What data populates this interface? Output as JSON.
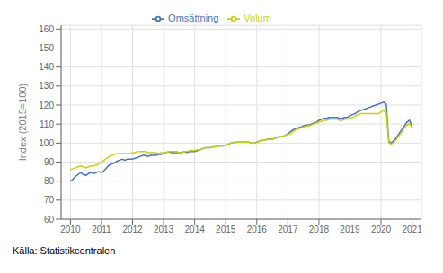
{
  "chart_data": {
    "type": "line",
    "ylabel": "Index (2015=100)",
    "source": "Källa: Statistikcentralen",
    "x": [
      2010.0,
      2010.083,
      2010.167,
      2010.25,
      2010.333,
      2010.417,
      2010.5,
      2010.583,
      2010.667,
      2010.75,
      2010.833,
      2010.917,
      2011.0,
      2011.083,
      2011.167,
      2011.25,
      2011.333,
      2011.417,
      2011.5,
      2011.583,
      2011.667,
      2011.75,
      2011.833,
      2011.917,
      2012.0,
      2012.083,
      2012.167,
      2012.25,
      2012.333,
      2012.417,
      2012.5,
      2012.583,
      2012.667,
      2012.75,
      2012.833,
      2012.917,
      2013.0,
      2013.083,
      2013.167,
      2013.25,
      2013.333,
      2013.417,
      2013.5,
      2013.583,
      2013.667,
      2013.75,
      2013.833,
      2013.917,
      2014.0,
      2014.083,
      2014.167,
      2014.25,
      2014.333,
      2014.417,
      2014.5,
      2014.583,
      2014.667,
      2014.75,
      2014.833,
      2014.917,
      2015.0,
      2015.083,
      2015.167,
      2015.25,
      2015.333,
      2015.417,
      2015.5,
      2015.583,
      2015.667,
      2015.75,
      2015.833,
      2015.917,
      2016.0,
      2016.083,
      2016.167,
      2016.25,
      2016.333,
      2016.417,
      2016.5,
      2016.583,
      2016.667,
      2016.75,
      2016.833,
      2016.917,
      2017.0,
      2017.083,
      2017.167,
      2017.25,
      2017.333,
      2017.417,
      2017.5,
      2017.583,
      2017.667,
      2017.75,
      2017.833,
      2017.917,
      2018.0,
      2018.083,
      2018.167,
      2018.25,
      2018.333,
      2018.417,
      2018.5,
      2018.583,
      2018.667,
      2018.75,
      2018.833,
      2018.917,
      2019.0,
      2019.083,
      2019.167,
      2019.25,
      2019.333,
      2019.417,
      2019.5,
      2019.583,
      2019.667,
      2019.75,
      2019.833,
      2019.917,
      2020.0,
      2020.083,
      2020.167,
      2020.25,
      2020.333,
      2020.417,
      2020.5,
      2020.583,
      2020.667,
      2020.75,
      2020.833,
      2020.917,
      2021.0
    ],
    "series": [
      {
        "name": "Omsättning",
        "color": "#4472C4",
        "values": [
          80.0,
          81.0,
          82.5,
          83.5,
          84.5,
          83.5,
          83.0,
          84.0,
          84.5,
          84.0,
          84.5,
          85.0,
          84.5,
          85.5,
          87.0,
          88.5,
          89.0,
          89.5,
          90.5,
          91.0,
          91.5,
          91.0,
          91.5,
          91.5,
          91.5,
          92.0,
          92.5,
          93.0,
          93.5,
          93.5,
          93.0,
          93.5,
          93.5,
          93.5,
          94.0,
          94.0,
          94.5,
          95.0,
          95.5,
          95.0,
          95.0,
          95.0,
          95.0,
          95.0,
          95.5,
          95.0,
          95.5,
          95.5,
          95.5,
          96.0,
          96.5,
          97.0,
          97.5,
          97.5,
          97.5,
          98.0,
          98.0,
          98.5,
          98.5,
          98.5,
          99.0,
          99.5,
          100.0,
          100.0,
          100.5,
          100.5,
          100.5,
          100.5,
          100.5,
          100.5,
          100.0,
          100.0,
          100.5,
          101.0,
          101.5,
          101.5,
          102.0,
          102.0,
          102.0,
          102.5,
          103.0,
          103.5,
          103.5,
          104.0,
          105.0,
          106.0,
          107.0,
          107.5,
          108.0,
          108.5,
          109.0,
          109.5,
          109.5,
          110.0,
          110.5,
          111.0,
          112.0,
          112.5,
          113.0,
          113.0,
          113.5,
          113.5,
          113.5,
          113.5,
          113.0,
          113.0,
          113.5,
          113.5,
          114.5,
          115.0,
          115.5,
          116.5,
          117.0,
          117.5,
          118.0,
          118.5,
          119.0,
          119.5,
          120.0,
          120.5,
          121.0,
          121.5,
          120.5,
          101.0,
          100.0,
          101.5,
          103.0,
          105.0,
          107.0,
          109.0,
          111.0,
          112.0,
          108.5
        ]
      },
      {
        "name": "Volum",
        "color": "#C8D400",
        "values": [
          86.0,
          86.5,
          87.0,
          87.5,
          88.0,
          87.5,
          87.0,
          87.5,
          88.0,
          88.0,
          88.5,
          89.0,
          90.0,
          91.0,
          92.0,
          93.0,
          93.5,
          94.0,
          94.5,
          94.5,
          94.5,
          94.5,
          94.5,
          94.5,
          95.0,
          95.0,
          95.5,
          95.5,
          95.5,
          95.5,
          95.0,
          95.0,
          95.0,
          95.0,
          94.5,
          95.0,
          95.0,
          95.0,
          95.5,
          95.5,
          95.5,
          95.5,
          95.0,
          95.0,
          95.5,
          95.5,
          96.0,
          96.0,
          96.0,
          96.5,
          96.5,
          97.0,
          97.5,
          97.5,
          97.5,
          98.0,
          98.0,
          98.5,
          98.5,
          98.5,
          99.0,
          99.5,
          100.0,
          100.0,
          100.5,
          100.5,
          100.5,
          100.5,
          100.5,
          100.5,
          100.0,
          100.0,
          100.5,
          101.0,
          101.5,
          101.5,
          102.0,
          102.0,
          102.0,
          102.5,
          103.0,
          103.5,
          103.5,
          104.0,
          104.5,
          105.0,
          106.0,
          107.0,
          107.5,
          108.0,
          108.5,
          109.0,
          109.0,
          109.5,
          110.0,
          110.5,
          111.0,
          111.5,
          112.0,
          112.0,
          112.5,
          112.5,
          112.5,
          112.5,
          112.0,
          112.0,
          112.5,
          112.5,
          113.0,
          113.5,
          114.0,
          115.0,
          115.5,
          115.5,
          115.5,
          115.5,
          115.5,
          115.5,
          115.5,
          115.5,
          116.5,
          117.0,
          116.0,
          100.0,
          99.5,
          100.5,
          102.0,
          104.0,
          106.0,
          108.0,
          109.5,
          110.5,
          107.5
        ]
      }
    ],
    "xlim": [
      2009.7,
      2021.3
    ],
    "xticks": [
      2010,
      2011,
      2012,
      2013,
      2014,
      2015,
      2016,
      2017,
      2018,
      2019,
      2020,
      2021
    ],
    "ylim": [
      60,
      162
    ],
    "yticks": [
      60,
      70,
      80,
      90,
      100,
      110,
      120,
      130,
      140,
      150,
      160
    ],
    "grid": true,
    "legend": "top"
  }
}
